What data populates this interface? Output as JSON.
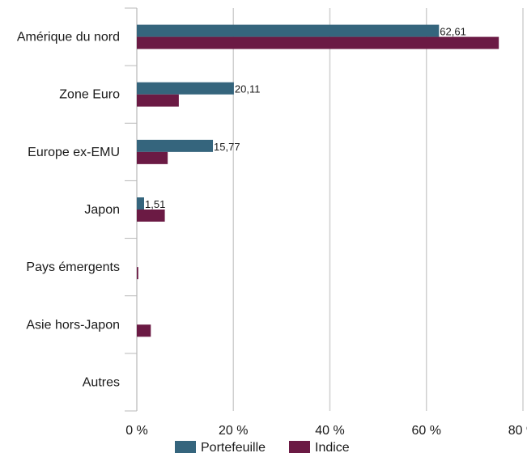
{
  "chart_data": {
    "type": "bar",
    "orientation": "horizontal",
    "categories": [
      "Amérique du nord",
      "Zone Euro",
      "Europe ex-EMU",
      "Japon",
      "Pays émergents",
      "Asie hors-Japon",
      "Autres"
    ],
    "series": [
      {
        "name": "Portefeuille",
        "color": "#35657d",
        "values": [
          62.61,
          20.11,
          15.77,
          1.51,
          0,
          0,
          0
        ]
      },
      {
        "name": "Indice",
        "color": "#6b1a44",
        "values": [
          75.0,
          8.7,
          6.4,
          5.8,
          0.3,
          2.9,
          0
        ]
      }
    ],
    "data_labels": [
      "62,61",
      "20,11",
      "15,77",
      "1,51",
      "",
      "",
      ""
    ],
    "x_ticks": [
      0,
      20,
      40,
      60,
      80
    ],
    "x_tick_labels": [
      "0 %",
      "20 %",
      "40 %",
      "60 %",
      "80 %"
    ],
    "xlim": [
      0,
      80
    ],
    "grid": true,
    "legend_position": "bottom",
    "title": "",
    "xlabel": "",
    "ylabel": ""
  }
}
